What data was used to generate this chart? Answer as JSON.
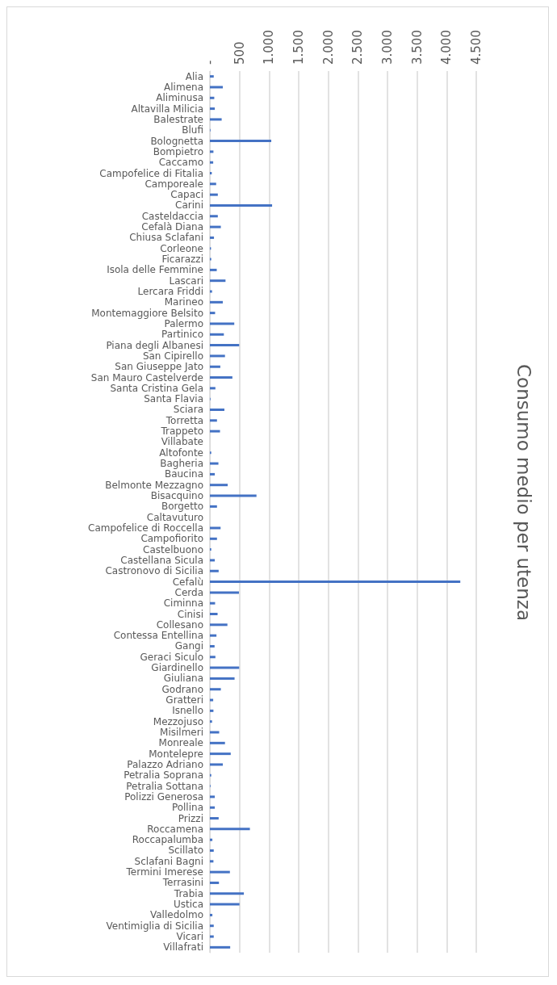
{
  "chart_data": {
    "type": "bar",
    "orientation": "horizontal",
    "title": "Consumo medio per utenza",
    "color": "#4472c4",
    "grid": "x",
    "xlim": [
      0,
      4500
    ],
    "xticks": [
      {
        "value": 0,
        "label": "-"
      },
      500,
      {
        "value": 1000,
        "label": "1.000"
      },
      {
        "value": 1500,
        "label": "1.500"
      },
      {
        "value": 2000,
        "label": "2.000"
      },
      {
        "value": 2500,
        "label": "2.500"
      },
      {
        "value": 3000,
        "label": "3.000"
      },
      {
        "value": 3500,
        "label": "3.500"
      },
      {
        "value": 4000,
        "label": "4.000"
      },
      {
        "value": 4500,
        "label": "4.500"
      }
    ],
    "categories": [
      "Alia",
      "Alimena",
      "Aliminusa",
      "Altavilla Milicia",
      "Balestrate",
      "Blufi",
      "Bolognetta",
      "Bompietro",
      "Caccamo",
      "Campofelice di Fitalia",
      "Camporeale",
      "Capaci",
      "Carini",
      "Casteldaccia",
      "Cefalà Diana",
      "Chiusa Sclafani",
      "Corleone",
      "Ficarazzi",
      "Isola delle Femmine",
      "Lascari",
      "Lercara Friddi",
      "Marineo",
      "Montemaggiore Belsito",
      "Palermo",
      "Partinico",
      "Piana degli Albanesi",
      "San Cipirello",
      "San Giuseppe Jato",
      "San Mauro Castelverde",
      "Santa Cristina Gela",
      "Santa Flavia",
      "Sciara",
      "Torretta",
      "Trappeto",
      "Villabate",
      "Altofonte",
      "Bagheria",
      "Baucina",
      "Belmonte Mezzagno",
      "Bisacquino",
      "Borgetto",
      "Caltavuturo",
      "Campofelice di Roccella",
      "Campofiorito",
      "Castelbuono",
      "Castellana Sicula",
      "Castronovo di Sicilia",
      "Cefalù",
      "Cerda",
      "Ciminna",
      "Cinisi",
      "Collesano",
      "Contessa Entellina",
      "Gangi",
      "Geraci Siculo",
      "Giardinello",
      "Giuliana",
      "Godrano",
      "Gratteri",
      "Isnello",
      "Mezzojuso",
      "Misilmeri",
      "Monreale",
      "Montelepre",
      "Palazzo Adriano",
      "Petralia Soprana",
      "Petralia Sottana",
      "Polizzi Generosa",
      "Pollina",
      "Prizzi",
      "Roccamena",
      "Roccapalumba",
      "Scillato",
      "Sclafani Bagni",
      "Termini Imerese",
      "Terrasini",
      "Trabia",
      "Ustica",
      "Valledolmo",
      "Ventimiglia di Sicilia",
      "Vicari",
      "Villafrati"
    ],
    "values": [
      65,
      218,
      74,
      83,
      199,
      10,
      1037,
      60,
      56,
      32,
      106,
      134,
      1051,
      134,
      185,
      69,
      19,
      23,
      116,
      264,
      37,
      218,
      88,
      412,
      236,
      495,
      255,
      176,
      380,
      93,
      10,
      245,
      120,
      171,
      0,
      23,
      144,
      83,
      301,
      787,
      120,
      0,
      181,
      120,
      23,
      83,
      148,
      4230,
      491,
      88,
      130,
      296,
      111,
      79,
      93,
      495,
      417,
      185,
      56,
      60,
      37,
      157,
      255,
      352,
      218,
      23,
      10,
      83,
      83,
      148,
      676,
      42,
      65,
      60,
      338,
      153,
      574,
      500,
      42,
      65,
      65,
      343
    ]
  }
}
